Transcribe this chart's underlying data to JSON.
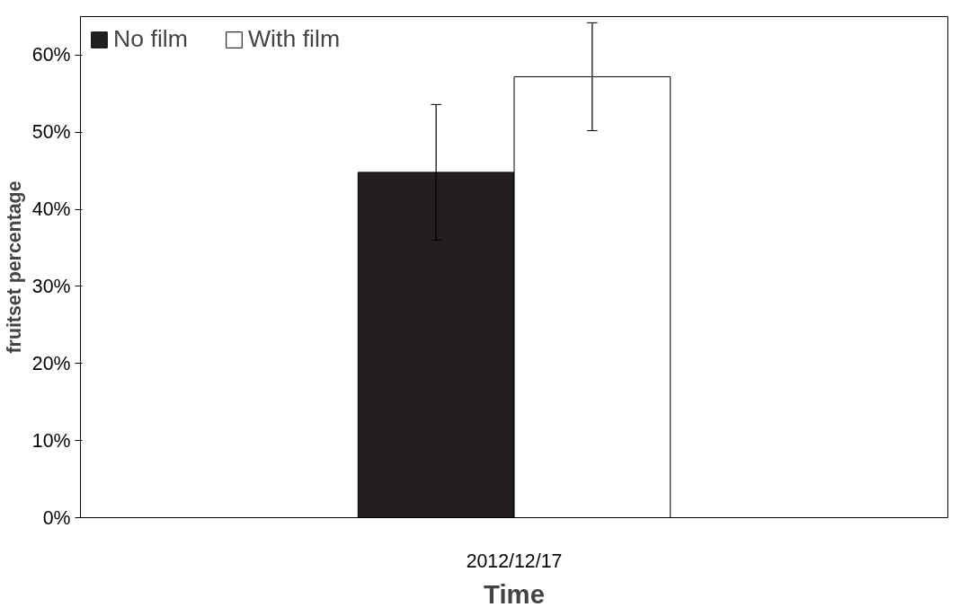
{
  "chart_data": {
    "type": "bar",
    "xlabel": "Time",
    "ylabel": "fruitset percentage",
    "categories": [
      "2012/12/17"
    ],
    "series": [
      {
        "name": "No film",
        "color": "#231f20",
        "values": [
          44.8
        ],
        "errors": [
          8.8
        ]
      },
      {
        "name": "With film",
        "color": "#ffffff",
        "values": [
          57.2
        ],
        "errors": [
          7.0
        ]
      }
    ],
    "ylim": [
      0,
      65
    ],
    "yticks": [
      {
        "value": 0,
        "label": "0%"
      },
      {
        "value": 10,
        "label": "10%"
      },
      {
        "value": 20,
        "label": "20%"
      },
      {
        "value": 30,
        "label": "30%"
      },
      {
        "value": 40,
        "label": "40%"
      },
      {
        "value": 50,
        "label": "50%"
      },
      {
        "value": 60,
        "label": "60%"
      }
    ],
    "grid": false,
    "legend": "top left"
  }
}
